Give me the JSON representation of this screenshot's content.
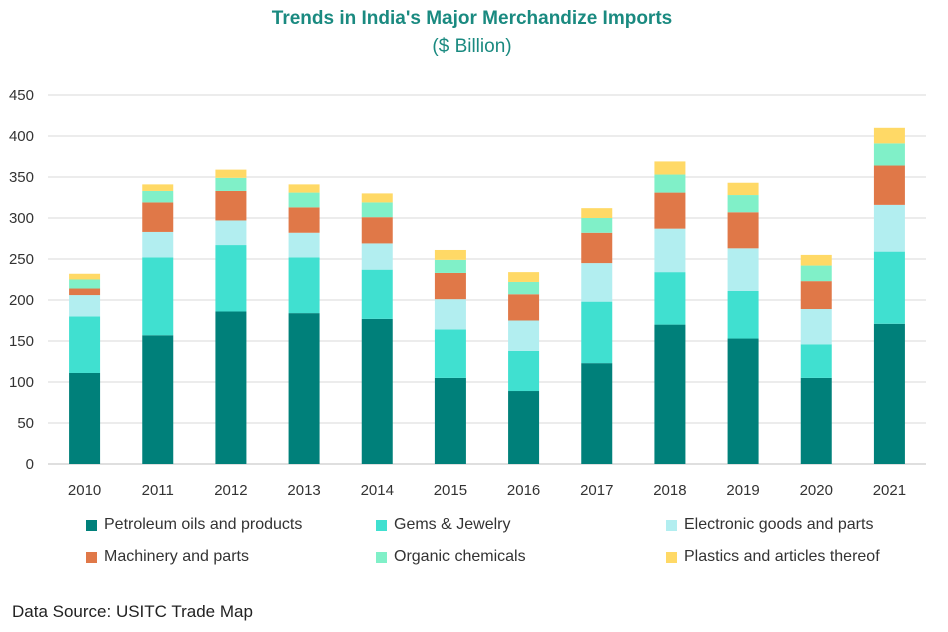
{
  "chart_data": {
    "type": "bar",
    "stacked": true,
    "title": "Trends in India's Major Merchandize Imports",
    "subtitle": "($ Billion)",
    "categories": [
      "2010",
      "2011",
      "2012",
      "2013",
      "2014",
      "2015",
      "2016",
      "2017",
      "2018",
      "2019",
      "2020",
      "2021"
    ],
    "ylim": [
      0,
      450
    ],
    "yticks": [
      0,
      50,
      100,
      150,
      200,
      250,
      300,
      350,
      400,
      450
    ],
    "grid": true,
    "legend_position": "bottom",
    "series": [
      {
        "name": "Petroleum oils and products",
        "color": "#00807a",
        "values": [
          111,
          157,
          186,
          184,
          177,
          105,
          89,
          123,
          170,
          153,
          105,
          171
        ]
      },
      {
        "name": "Gems & Jewelry",
        "color": "#40e0d0",
        "values": [
          69,
          95,
          81,
          68,
          60,
          59,
          49,
          75,
          64,
          58,
          41,
          88
        ]
      },
      {
        "name": "Electronic goods and parts",
        "color": "#b2eef0",
        "values": [
          26,
          31,
          30,
          30,
          32,
          37,
          37,
          47,
          53,
          52,
          43,
          57
        ]
      },
      {
        "name": "Machinery and parts",
        "color": "#e07848",
        "values": [
          8,
          36,
          36,
          31,
          32,
          32,
          32,
          37,
          44,
          44,
          34,
          48
        ]
      },
      {
        "name": "Organic chemicals",
        "color": "#80f0c8",
        "values": [
          11,
          14,
          16,
          18,
          18,
          16,
          15,
          18,
          22,
          21,
          19,
          27
        ]
      },
      {
        "name": "Plastics and articles thereof",
        "color": "#ffd966",
        "values": [
          7,
          8,
          10,
          10,
          11,
          12,
          12,
          12,
          16,
          15,
          13,
          19
        ]
      }
    ],
    "source": "Data Source: USITC Trade Map"
  }
}
